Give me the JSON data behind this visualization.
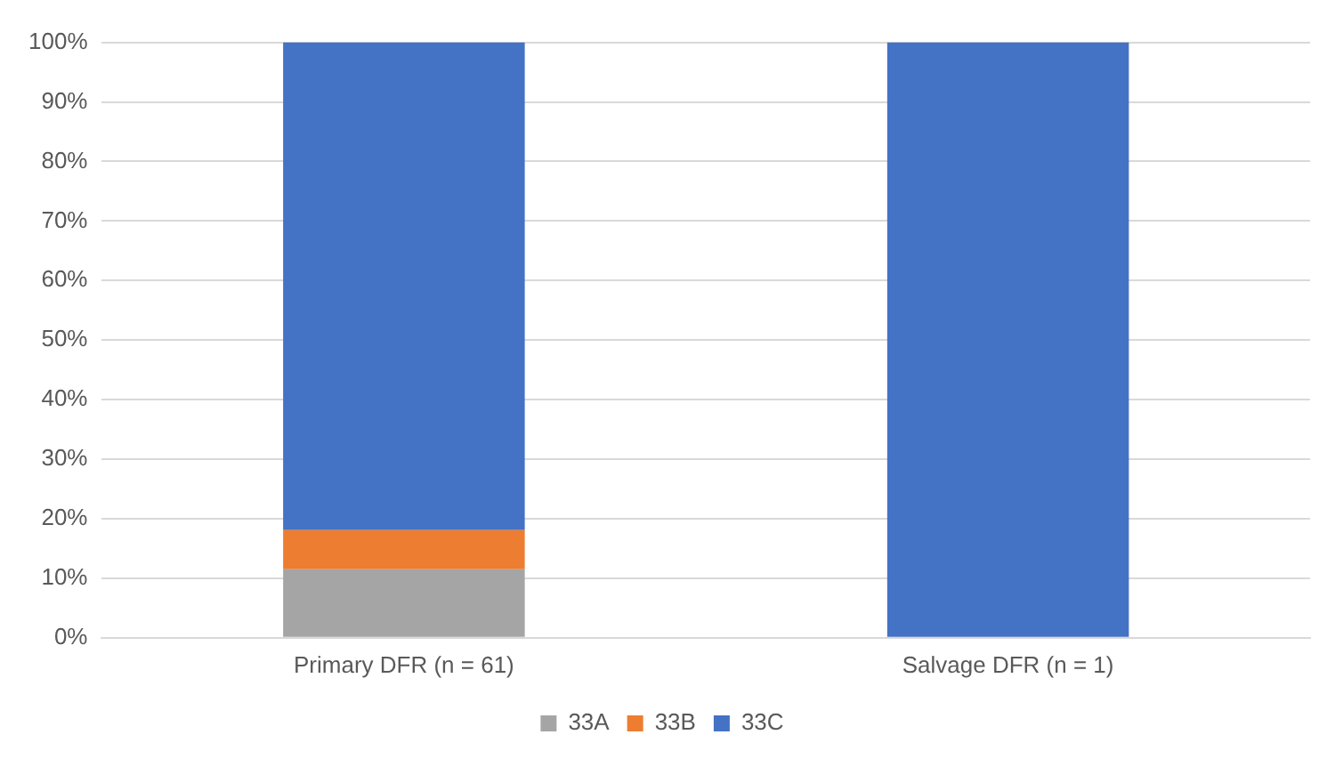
{
  "chart_data": {
    "type": "bar",
    "stacked": true,
    "categories": [
      "Primary DFR (n = 61)",
      "Salvage DFR (n = 1)"
    ],
    "series": [
      {
        "name": "33A",
        "color": "#a5a5a5",
        "values": [
          11.5,
          0
        ]
      },
      {
        "name": "33B",
        "color": "#ed7d31",
        "values": [
          6.6,
          0
        ]
      },
      {
        "name": "33C",
        "color": "#4472c4",
        "values": [
          81.9,
          100
        ]
      }
    ],
    "ylim": [
      0,
      100
    ],
    "yticks": [
      {
        "value": 0,
        "label": "0%"
      },
      {
        "value": 10,
        "label": "10%"
      },
      {
        "value": 20,
        "label": "20%"
      },
      {
        "value": 30,
        "label": "30%"
      },
      {
        "value": 40,
        "label": "40%"
      },
      {
        "value": 50,
        "label": "50%"
      },
      {
        "value": 60,
        "label": "60%"
      },
      {
        "value": 70,
        "label": "70%"
      },
      {
        "value": 80,
        "label": "80%"
      },
      {
        "value": 90,
        "label": "90%"
      },
      {
        "value": 100,
        "label": "100%"
      }
    ],
    "grid": "y",
    "legend": "bottom"
  }
}
